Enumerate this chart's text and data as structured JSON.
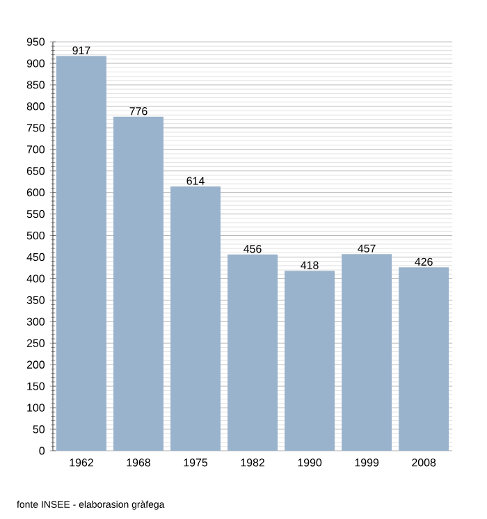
{
  "chart_data": {
    "type": "bar",
    "categories": [
      "1962",
      "1968",
      "1975",
      "1982",
      "1990",
      "1999",
      "2008"
    ],
    "values": [
      917,
      776,
      614,
      456,
      418,
      457,
      426
    ],
    "color": "#9ab3cc",
    "data_labels": true,
    "grid": "y",
    "ylim": [
      0,
      950
    ],
    "yticks": [
      0,
      50,
      100,
      150,
      200,
      250,
      300,
      350,
      400,
      450,
      500,
      550,
      600,
      650,
      700,
      750,
      800,
      850,
      900,
      950
    ],
    "annotations": [
      "fonte INSEE - elaborasion gràfega"
    ]
  }
}
